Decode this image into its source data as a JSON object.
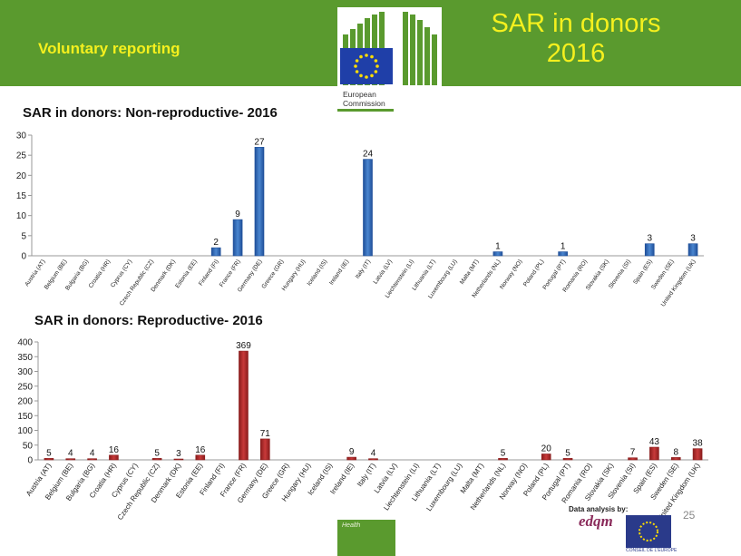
{
  "header": {
    "left_label": "Voluntary reporting",
    "title": "SAR in donors 2016",
    "logo_text_line1": "European",
    "logo_text_line2": "Commission"
  },
  "footer": {
    "health_label": "Health",
    "page_number": "25",
    "data_analysis": "Data analysis by:",
    "edqm_label": "edqm",
    "coe_label": "CONSEIL DE L'EUROPE"
  },
  "colors": {
    "header_green": "#5a9a2e",
    "header_text": "#f5f01e",
    "bar_blue": "#4a86d0",
    "bar_red": "#c83a3a"
  },
  "chart_data": [
    {
      "type": "bar",
      "title": "SAR in donors: Non-reproductive- 2016",
      "categories": [
        "Austria (AT)",
        "Belgium (BE)",
        "Bulgaria (BG)",
        "Croatia (HR)",
        "Cyprus (CY)",
        "Czech Republic (CZ)",
        "Denmark (DK)",
        "Estonia (EE)",
        "Finland (FI)",
        "France (FR)",
        "Germany (DE)",
        "Greece (GR)",
        "Hungary (HU)",
        "Iceland (IS)",
        "Ireland (IE)",
        "Italy (IT)",
        "Latvia (LV)",
        "Liechtenstein (LI)",
        "Lithuania (LT)",
        "Luxembourg (LU)",
        "Malta (MT)",
        "Netherlands (NL)",
        "Norway (NO)",
        "Poland (PL)",
        "Portugal (PT)",
        "Romania (RO)",
        "Slovakia (SK)",
        "Slovenia (SI)",
        "Spain (ES)",
        "Sweden (SE)",
        "United Kingdom (UK)"
      ],
      "values": [
        0,
        0,
        0,
        0,
        0,
        0,
        0,
        0,
        2,
        9,
        27,
        0,
        0,
        0,
        0,
        24,
        0,
        0,
        0,
        0,
        0,
        1,
        0,
        0,
        1,
        0,
        0,
        0,
        3,
        0,
        3
      ],
      "ylim": [
        0,
        30
      ],
      "yticks": [
        0,
        5,
        10,
        15,
        20,
        25,
        30
      ],
      "grid": false
    },
    {
      "type": "bar",
      "title": "SAR in donors: Reproductive- 2016",
      "categories": [
        "Austria (AT)",
        "Belgium (BE)",
        "Bulgaria (BG)",
        "Croatia (HR)",
        "Cyprus (CY)",
        "Czech Republic (CZ)",
        "Denmark (DK)",
        "Estonia (EE)",
        "Finland (FI)",
        "France (FR)",
        "Germany (DE)",
        "Greece (GR)",
        "Hungary (HU)",
        "Iceland (IS)",
        "Ireland (IE)",
        "Italy (IT)",
        "Latvia (LV)",
        "Liechtenstein (LI)",
        "Lithuania (LT)",
        "Luxembourg (LU)",
        "Malta (MT)",
        "Netherlands (NL)",
        "Norway (NO)",
        "Poland (PL)",
        "Portugal (PT)",
        "Romania (RO)",
        "Slovakia (SK)",
        "Slovenia (SI)",
        "Spain (ES)",
        "Sweden (SE)",
        "United Kingdom (UK)"
      ],
      "values": [
        5,
        4,
        4,
        16,
        0,
        5,
        3,
        16,
        0,
        369,
        71,
        0,
        0,
        0,
        9,
        4,
        0,
        0,
        0,
        0,
        0,
        5,
        0,
        20,
        5,
        0,
        0,
        7,
        43,
        8,
        38
      ],
      "ylim": [
        0,
        400
      ],
      "yticks": [
        0,
        50,
        100,
        150,
        200,
        250,
        300,
        350,
        400
      ],
      "grid": false
    }
  ]
}
